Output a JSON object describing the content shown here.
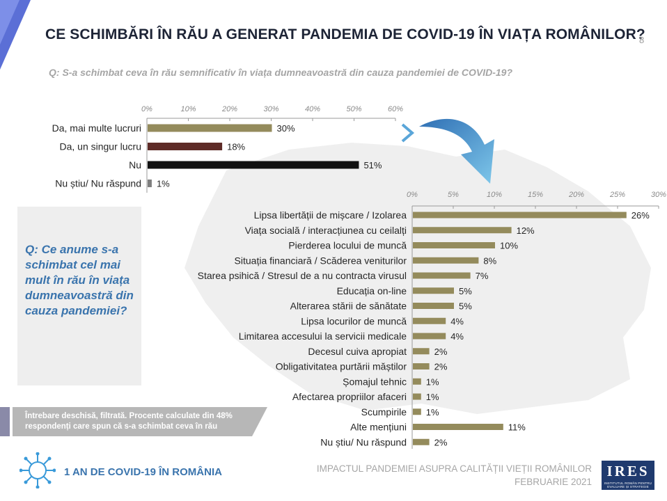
{
  "header": {
    "title": "CE SCHIMBĂRI ÎN RĂU A GENERAT PANDEMIA DE COVID-19 ÎN VIAȚA ROMÂNILOR?",
    "page_number": "8",
    "question": "Q: S-a schimbat ceva în rău semnificativ în viața dumneavoastră din cauza pandemiei de COVID-19?"
  },
  "sub_question": "Q: Ce anume s-a schimbat cel mai mult în rău în viața dumneavoastră din cauza pandemiei?",
  "note": "Întrebare deschisă, filtrată. Procente calculate din 48% respondenți care spun că s-a schimbat ceva în rău",
  "footer": {
    "left": "1 AN DE COVID-19 ÎN ROMÂNIA",
    "right_line1": "IMPACTUL PANDEMIEI ASUPRA CALITĂȚII VIEȚII ROMÂNILOR",
    "right_line2": "FEBRUARIE 2021",
    "logo": "IRES",
    "logo_sub": "INSTITUTUL ROMÂN PENTRU EVALUARE ȘI STRATEGIE"
  },
  "colors": {
    "title": "#1d2436",
    "accent_blue": "#3a74ad",
    "bar_olive": "#948b5c",
    "bar_maroon": "#5e2b27",
    "bar_black": "#111111",
    "bar_grey": "#7f7f7f"
  },
  "chart_data": [
    {
      "type": "bar",
      "orientation": "horizontal",
      "categories": [
        "Da, mai multe lucruri",
        "Da, un singur lucru",
        "Nu",
        "Nu știu/ Nu răspund"
      ],
      "values": [
        30,
        18,
        51,
        1
      ],
      "value_labels": [
        "30%",
        "18%",
        "51%",
        "1%"
      ],
      "bar_colors": [
        "#948b5c",
        "#5e2b27",
        "#111111",
        "#7f7f7f"
      ],
      "xlim": [
        0,
        60
      ],
      "ticks": [
        "0%",
        "10%",
        "20%",
        "30%",
        "40%",
        "50%",
        "60%"
      ],
      "tick_position": "top",
      "grid": false
    },
    {
      "type": "bar",
      "orientation": "horizontal",
      "categories": [
        "Lipsa libertății de mișcare / Izolarea",
        "Viața socială / interacțiunea cu ceilalți",
        "Pierderea locului de muncă",
        "Situația financiară / Scăderea veniturilor",
        "Starea psihică / Stresul de a nu contracta virusul",
        "Educația on-line",
        "Alterarea stării de sănătate",
        "Lipsa locurilor de muncă",
        "Limitarea accesului la servicii medicale",
        "Decesul cuiva apropiat",
        "Obligativitatea purtării măștilor",
        "Șomajul tehnic",
        "Afectarea propriilor afaceri",
        "Scumpirile",
        "Alte mențiuni",
        "Nu știu/ Nu răspund"
      ],
      "values": [
        26,
        12,
        10,
        8,
        7,
        5,
        5,
        4,
        4,
        2,
        2,
        1,
        1,
        1,
        11,
        2
      ],
      "value_labels": [
        "26%",
        "12%",
        "10%",
        "8%",
        "7%",
        "5%",
        "5%",
        "4%",
        "4%",
        "2%",
        "2%",
        "1%",
        "1%",
        "1%",
        "11%",
        "2%"
      ],
      "bar_color": "#948b5c",
      "xlim": [
        0,
        30
      ],
      "ticks": [
        "0%",
        "5%",
        "10%",
        "15%",
        "20%",
        "25%",
        "30%"
      ],
      "tick_position": "top",
      "grid": false
    }
  ]
}
